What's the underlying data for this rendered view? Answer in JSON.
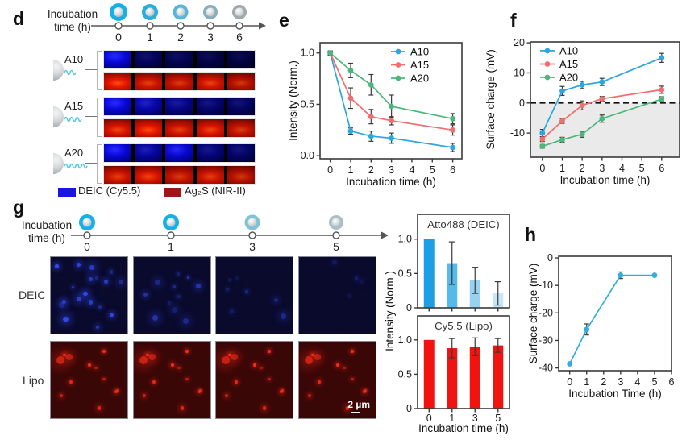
{
  "panel_letters": {
    "d": "d",
    "e": "e",
    "f": "f",
    "g": "g",
    "h": "h"
  },
  "panel_d": {
    "timeline": {
      "label_line1": "Incubation",
      "label_line2": "time (h)",
      "ticks": [
        "0",
        "1",
        "2",
        "3",
        "6"
      ],
      "vesicles": [
        {
          "ring": "#18AEE6",
          "ring_w": 5.0,
          "r": 11
        },
        {
          "ring": "#2BAEDE",
          "ring_w": 4.5,
          "r": 10
        },
        {
          "ring": "#55B6D8",
          "ring_w": 4.0,
          "r": 9.5
        },
        {
          "ring": "#87AEBD",
          "ring_w": 3.5,
          "r": 9
        },
        {
          "ring": "#A2A9AD",
          "ring_w": 3.5,
          "r": 9
        }
      ]
    },
    "rows": [
      {
        "name": "A10",
        "waves": 2,
        "blue": [
          1,
          0.42,
          0.38,
          0.33,
          0.3
        ],
        "red": [
          1,
          0.9,
          0.85,
          0.92,
          0.8
        ]
      },
      {
        "name": "A15",
        "waves": 3,
        "blue": [
          1,
          0.78,
          0.62,
          0.5,
          0.45
        ],
        "red": [
          0.95,
          1,
          0.9,
          0.95,
          0.85
        ]
      },
      {
        "name": "A20",
        "waves": 4,
        "blue": [
          1,
          0.72,
          0.95,
          0.55,
          0.48
        ],
        "red": [
          0.9,
          0.95,
          0.85,
          0.9,
          0.8
        ]
      }
    ],
    "legend": [
      {
        "label": "DEIC (Cy5.5)",
        "color": "#1A16E0"
      },
      {
        "label": "Ag₂S (NIR-II)",
        "color": "#A21418"
      }
    ]
  },
  "panel_g": {
    "timeline": {
      "label_line1": "Incubation",
      "label_line2": "time (h)",
      "ticks": [
        "0",
        "1",
        "3",
        "5"
      ],
      "vesicles": [
        {
          "ring": "#16B0E8",
          "ring_w": 4.5,
          "r": 10
        },
        {
          "ring": "#16B0E8",
          "ring_w": 4.5,
          "r": 10
        },
        {
          "ring": "#7EC2D6",
          "ring_w": 4.0,
          "r": 9.5
        },
        {
          "ring": "#A9BFC6",
          "ring_w": 3.5,
          "r": 9
        }
      ]
    },
    "row_labels": [
      "DEIC",
      "Lipo"
    ],
    "scale_bar": "2 µm",
    "bars_ylabel": "Intensity (Norm.)",
    "deic_images": {
      "bg": "#0A0A2C",
      "dot_rgb": "55,80,255",
      "counts": [
        18,
        11,
        7,
        4
      ],
      "intensity": [
        1,
        0.65,
        0.45,
        0.3
      ]
    },
    "lipo_images": {
      "bg": "#3A0707",
      "dot_rgb": "255,45,25",
      "count": 12
    }
  },
  "chart_data": [
    {
      "id": "e",
      "type": "line",
      "title": "",
      "xlabel": "Incubation time (h)",
      "ylabel": "Intensity (Norm.)",
      "xlim": [
        -0.5,
        6.45
      ],
      "ylim": [
        -0.03,
        1.1
      ],
      "xticks": [
        {
          "v": 0,
          "t": "0"
        },
        {
          "v": 1,
          "t": "1"
        },
        {
          "v": 2,
          "t": "2"
        },
        {
          "v": 3,
          "t": "3"
        },
        {
          "v": 4,
          "t": "4"
        },
        {
          "v": 5,
          "t": "5"
        },
        {
          "v": 6,
          "t": "6"
        }
      ],
      "yticks": [
        {
          "v": 0,
          "t": "0.0"
        },
        {
          "v": 0.5,
          "t": "0.5"
        },
        {
          "v": 1,
          "t": "1.0"
        }
      ],
      "legend_pos": "tr",
      "grid": false,
      "series": [
        {
          "name": "A10",
          "color": "#2BA6DF",
          "x": [
            0,
            1,
            2,
            3,
            6
          ],
          "y": [
            1.0,
            0.24,
            0.19,
            0.17,
            0.08
          ],
          "err": [
            0.02,
            0.03,
            0.05,
            0.05,
            0.04
          ]
        },
        {
          "name": "A15",
          "color": "#F06E6E",
          "x": [
            0,
            1,
            2,
            3,
            6
          ],
          "y": [
            1.0,
            0.56,
            0.38,
            0.34,
            0.25
          ],
          "err": [
            0.02,
            0.1,
            0.07,
            0.04,
            0.05
          ]
        },
        {
          "name": "A20",
          "color": "#4CB77B",
          "x": [
            0,
            1,
            2,
            3,
            6
          ],
          "y": [
            1.0,
            0.83,
            0.69,
            0.48,
            0.36
          ],
          "err": [
            0.02,
            0.07,
            0.1,
            0.11,
            0.05
          ]
        }
      ]
    },
    {
      "id": "f",
      "type": "line",
      "title": "",
      "xlabel": "Incubation time (h)",
      "ylabel": "Surface charge (mV)",
      "xlim": [
        -0.6,
        6.9
      ],
      "ylim": [
        -18,
        20.3
      ],
      "xticks": [
        {
          "v": 0,
          "t": "0"
        },
        {
          "v": 1,
          "t": "1"
        },
        {
          "v": 2,
          "t": "2"
        },
        {
          "v": 3,
          "t": "3"
        },
        {
          "v": 4,
          "t": "4"
        },
        {
          "v": 5,
          "t": "5"
        },
        {
          "v": 6,
          "t": "6"
        }
      ],
      "yticks": [
        {
          "v": -10,
          "t": "-10"
        },
        {
          "v": 0,
          "t": "0"
        },
        {
          "v": 10,
          "t": "10"
        },
        {
          "v": 20,
          "t": "20"
        }
      ],
      "legend_pos": "tl",
      "zero_dash": true,
      "shade_below": 0,
      "grid": false,
      "series": [
        {
          "name": "A10",
          "color": "#2BA6DF",
          "x": [
            0,
            1,
            2,
            3,
            6
          ],
          "y": [
            -10,
            4,
            6,
            7,
            15
          ],
          "err": [
            1.2,
            1.5,
            1.2,
            1.2,
            1.5
          ]
        },
        {
          "name": "A15",
          "color": "#F06E6E",
          "x": [
            0,
            1,
            2,
            3,
            6
          ],
          "y": [
            -12,
            -6,
            -0.8,
            1.4,
            4.4
          ],
          "err": [
            0.8,
            0.8,
            1.5,
            0.8,
            1.2
          ]
        },
        {
          "name": "A20",
          "color": "#4CB77B",
          "x": [
            0,
            1,
            2,
            3,
            6
          ],
          "y": [
            -14.4,
            -12.2,
            -10.4,
            -5.2,
            1.3
          ],
          "err": [
            0.6,
            0.8,
            1.0,
            1.2,
            0.8
          ]
        }
      ]
    },
    {
      "id": "atto",
      "type": "bar",
      "title": "Atto488 (DEIC)",
      "categories": [
        "0",
        "1",
        "3",
        "5"
      ],
      "values": [
        1.0,
        0.65,
        0.4,
        0.21
      ],
      "errors": [
        0,
        0.31,
        0.19,
        0.17
      ],
      "bar_colors": [
        "#1CA0E3",
        "#55B9EA",
        "#97D2F1",
        "#C6E7F9"
      ],
      "yticks": [
        {
          "v": 0,
          "t": "0"
        },
        {
          "v": 0.5,
          "t": "0.5"
        },
        {
          "v": 1,
          "t": "1.0"
        }
      ],
      "ylim": [
        0,
        1.36
      ],
      "show_xticklabels": false,
      "xlabel": ""
    },
    {
      "id": "cy",
      "type": "bar",
      "title": "Cy5.5 (Lipo)",
      "categories": [
        "0",
        "1",
        "3",
        "5"
      ],
      "values": [
        1.0,
        0.88,
        0.9,
        0.92
      ],
      "errors": [
        0,
        0.14,
        0.13,
        0.1
      ],
      "bar_colors": [
        "#F01310",
        "#F01310",
        "#F01310",
        "#F01310"
      ],
      "yticks": [
        {
          "v": 0,
          "t": "0"
        },
        {
          "v": 0.5,
          "t": "0.5"
        },
        {
          "v": 1,
          "t": "1.0"
        }
      ],
      "ylim": [
        0,
        1.35
      ],
      "show_xticklabels": true,
      "xlabel": "Incubation time (h)"
    },
    {
      "id": "h",
      "type": "line",
      "title": "",
      "xlabel": "Incubation Time (h)",
      "ylabel": "Surface charge (mV)",
      "xlim": [
        -0.65,
        6.0
      ],
      "ylim": [
        -41,
        0.6
      ],
      "xticks": [
        {
          "v": 0,
          "t": "0"
        },
        {
          "v": 1,
          "t": "1"
        },
        {
          "v": 2,
          "t": "2"
        },
        {
          "v": 3,
          "t": "3"
        },
        {
          "v": 4,
          "t": "4"
        },
        {
          "v": 5,
          "t": "5"
        },
        {
          "v": 6,
          "t": "6"
        }
      ],
      "yticks": [
        {
          "v": 0,
          "t": "0"
        },
        {
          "v": -10,
          "t": "-10"
        },
        {
          "v": -20,
          "t": "-20"
        },
        {
          "v": -30,
          "t": "-30"
        },
        {
          "v": -40,
          "t": "-40"
        }
      ],
      "legend_pos": null,
      "grid": false,
      "series": [
        {
          "name": "",
          "color": "#35ADDC",
          "x": [
            0,
            1,
            3,
            5
          ],
          "y": [
            -38.5,
            -26,
            -6.3,
            -6.3
          ],
          "err": [
            0,
            2,
            1.2,
            0
          ]
        }
      ]
    }
  ]
}
